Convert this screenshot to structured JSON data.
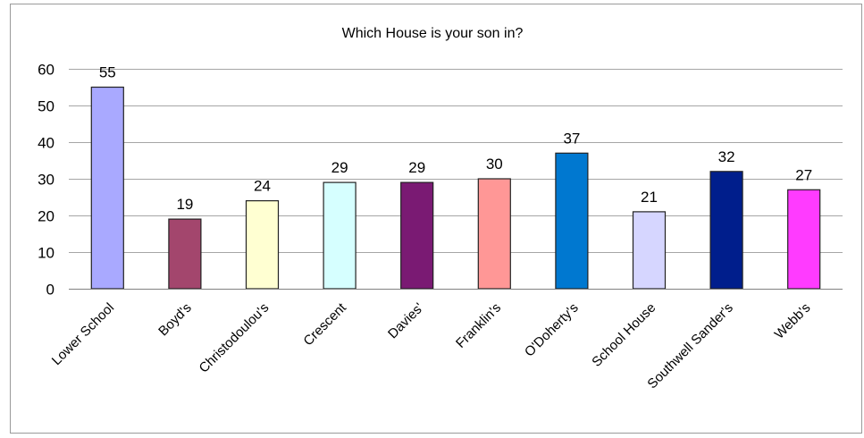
{
  "chart_data": {
    "type": "bar",
    "title": "Which House is your son in?",
    "xlabel": "",
    "ylabel": "",
    "ylim": [
      0,
      60
    ],
    "yticks": [
      0,
      10,
      20,
      30,
      40,
      50,
      60
    ],
    "grid": true,
    "legend": "none",
    "categories": [
      "Lower School",
      "Boyd's",
      "Christodoulou's",
      "Crescent",
      "Davies'",
      "Franklin's",
      "O'Doherty's",
      "School House",
      "Southwell Sander's",
      "Webb's"
    ],
    "values": [
      55,
      19,
      24,
      29,
      29,
      30,
      37,
      21,
      32,
      27
    ],
    "colors": [
      "#A9A9FF",
      "#A3466D",
      "#FFFFD2",
      "#D6FFFF",
      "#7A1A73",
      "#FF9796",
      "#0078D0",
      "#D6D6FF",
      "#001E8C",
      "#FF3BFF"
    ]
  }
}
